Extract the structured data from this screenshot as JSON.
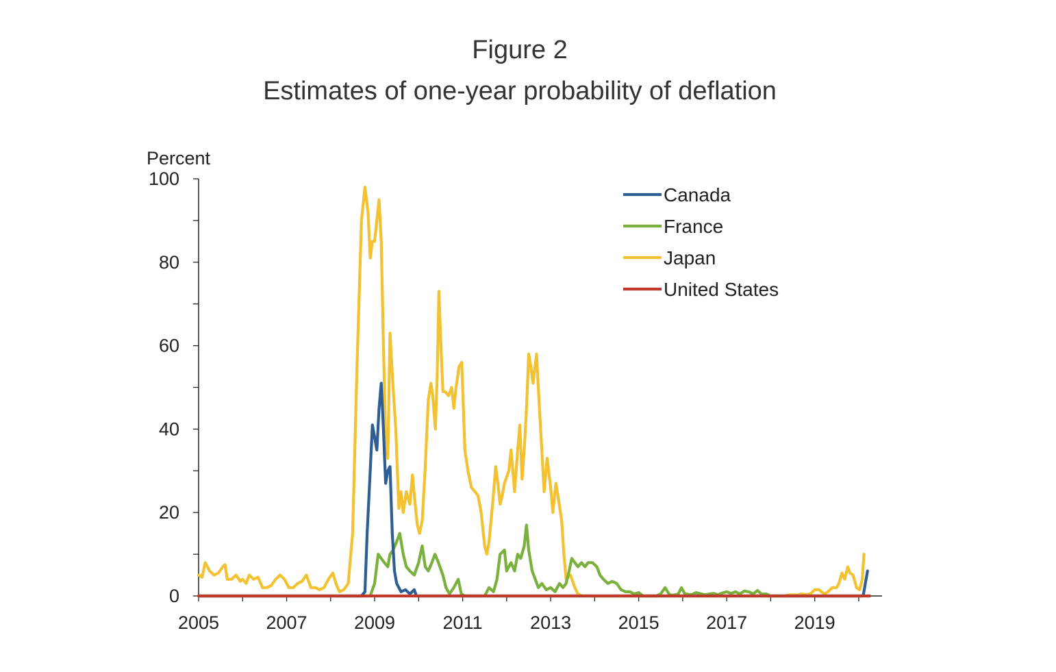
{
  "figure": {
    "label": "Figure 2",
    "subtitle": "Estimates of one-year probability of deflation"
  },
  "chart_data": {
    "type": "line",
    "title": "Estimates of one-year probability of deflation",
    "ylabel": "Percent",
    "xlabel": "",
    "ylim": [
      0,
      100
    ],
    "xlim": [
      2005,
      2020.25
    ],
    "yticks": [
      0,
      20,
      40,
      60,
      80,
      100
    ],
    "xticks": [
      2005,
      2007,
      2009,
      2011,
      2013,
      2015,
      2017,
      2019
    ],
    "grid": false,
    "legend_position": "top-right",
    "series": [
      {
        "name": "Canada",
        "color": "#2e5e93",
        "points": [
          [
            2005,
            0
          ],
          [
            2008.7,
            0
          ],
          [
            2008.78,
            1
          ],
          [
            2008.83,
            15
          ],
          [
            2008.9,
            30
          ],
          [
            2008.95,
            41
          ],
          [
            2009.0,
            38
          ],
          [
            2009.05,
            35
          ],
          [
            2009.1,
            45
          ],
          [
            2009.15,
            51
          ],
          [
            2009.2,
            40
          ],
          [
            2009.25,
            27
          ],
          [
            2009.3,
            30
          ],
          [
            2009.35,
            31
          ],
          [
            2009.4,
            15
          ],
          [
            2009.45,
            6
          ],
          [
            2009.5,
            3
          ],
          [
            2009.6,
            1
          ],
          [
            2009.7,
            1.5
          ],
          [
            2009.8,
            0.5
          ],
          [
            2009.9,
            1.5
          ],
          [
            2009.95,
            0
          ],
          [
            2020.1,
            0
          ],
          [
            2020.15,
            3
          ],
          [
            2020.2,
            6
          ]
        ]
      },
      {
        "name": "France",
        "color": "#7ab03c",
        "points": [
          [
            2005,
            0
          ],
          [
            2008.9,
            0
          ],
          [
            2009.0,
            3
          ],
          [
            2009.08,
            10
          ],
          [
            2009.15,
            9
          ],
          [
            2009.22,
            8
          ],
          [
            2009.3,
            7
          ],
          [
            2009.35,
            10
          ],
          [
            2009.42,
            11
          ],
          [
            2009.5,
            13
          ],
          [
            2009.57,
            15
          ],
          [
            2009.65,
            10
          ],
          [
            2009.72,
            7
          ],
          [
            2009.8,
            6
          ],
          [
            2009.9,
            5
          ],
          [
            2010.0,
            8
          ],
          [
            2010.08,
            12
          ],
          [
            2010.15,
            7
          ],
          [
            2010.22,
            6
          ],
          [
            2010.3,
            8
          ],
          [
            2010.37,
            10
          ],
          [
            2010.45,
            8
          ],
          [
            2010.55,
            5
          ],
          [
            2010.62,
            2
          ],
          [
            2010.7,
            0.5
          ],
          [
            2010.8,
            2
          ],
          [
            2010.9,
            4
          ],
          [
            2010.97,
            0.5
          ],
          [
            2011.05,
            0
          ],
          [
            2011.5,
            0
          ],
          [
            2011.6,
            2
          ],
          [
            2011.7,
            1
          ],
          [
            2011.78,
            4
          ],
          [
            2011.85,
            10
          ],
          [
            2011.95,
            11
          ],
          [
            2012.0,
            6
          ],
          [
            2012.1,
            8
          ],
          [
            2012.18,
            6
          ],
          [
            2012.25,
            10
          ],
          [
            2012.32,
            9
          ],
          [
            2012.4,
            12
          ],
          [
            2012.45,
            17
          ],
          [
            2012.5,
            11
          ],
          [
            2012.58,
            6
          ],
          [
            2012.65,
            4
          ],
          [
            2012.72,
            2
          ],
          [
            2012.8,
            3
          ],
          [
            2012.9,
            1.5
          ],
          [
            2013.0,
            2
          ],
          [
            2013.1,
            1
          ],
          [
            2013.2,
            3
          ],
          [
            2013.28,
            2
          ],
          [
            2013.35,
            3
          ],
          [
            2013.42,
            6
          ],
          [
            2013.48,
            9
          ],
          [
            2013.55,
            8
          ],
          [
            2013.62,
            7
          ],
          [
            2013.7,
            8
          ],
          [
            2013.78,
            7
          ],
          [
            2013.85,
            8
          ],
          [
            2013.95,
            8
          ],
          [
            2014.05,
            7
          ],
          [
            2014.12,
            5
          ],
          [
            2014.2,
            4
          ],
          [
            2014.3,
            3
          ],
          [
            2014.4,
            3.5
          ],
          [
            2014.5,
            3
          ],
          [
            2014.6,
            1.5
          ],
          [
            2014.7,
            1
          ],
          [
            2014.8,
            1
          ],
          [
            2014.9,
            0.5
          ],
          [
            2015.0,
            0.8
          ],
          [
            2015.1,
            0
          ],
          [
            2015.4,
            0
          ],
          [
            2015.5,
            0.5
          ],
          [
            2015.6,
            2
          ],
          [
            2015.7,
            0.3
          ],
          [
            2015.8,
            0.2
          ],
          [
            2015.9,
            0.5
          ],
          [
            2015.97,
            2
          ],
          [
            2016.05,
            0.5
          ],
          [
            2016.2,
            0.3
          ],
          [
            2016.3,
            0.8
          ],
          [
            2016.5,
            0.3
          ],
          [
            2016.7,
            0.6
          ],
          [
            2016.8,
            0.3
          ],
          [
            2016.9,
            0.7
          ],
          [
            2017.0,
            1
          ],
          [
            2017.1,
            0.6
          ],
          [
            2017.2,
            1
          ],
          [
            2017.3,
            0.5
          ],
          [
            2017.4,
            1.2
          ],
          [
            2017.5,
            1
          ],
          [
            2017.6,
            0.5
          ],
          [
            2017.7,
            1.3
          ],
          [
            2017.8,
            0.4
          ],
          [
            2017.9,
            0.5
          ],
          [
            2018.0,
            0
          ],
          [
            2020.25,
            0
          ]
        ]
      },
      {
        "name": "Japan",
        "color": "#f2c232",
        "points": [
          [
            2005.0,
            5
          ],
          [
            2005.08,
            4.5
          ],
          [
            2005.15,
            8
          ],
          [
            2005.25,
            6
          ],
          [
            2005.35,
            5
          ],
          [
            2005.45,
            5.5
          ],
          [
            2005.55,
            7
          ],
          [
            2005.6,
            7.5
          ],
          [
            2005.65,
            4
          ],
          [
            2005.75,
            4
          ],
          [
            2005.85,
            5
          ],
          [
            2005.95,
            3.5
          ],
          [
            2006.0,
            4
          ],
          [
            2006.08,
            3
          ],
          [
            2006.15,
            5
          ],
          [
            2006.25,
            4
          ],
          [
            2006.35,
            4.5
          ],
          [
            2006.45,
            2
          ],
          [
            2006.55,
            2
          ],
          [
            2006.65,
            2.5
          ],
          [
            2006.75,
            4
          ],
          [
            2006.85,
            5
          ],
          [
            2006.95,
            4
          ],
          [
            2007.05,
            2
          ],
          [
            2007.15,
            2
          ],
          [
            2007.25,
            3
          ],
          [
            2007.35,
            3.5
          ],
          [
            2007.45,
            5
          ],
          [
            2007.55,
            2
          ],
          [
            2007.65,
            2
          ],
          [
            2007.75,
            1.5
          ],
          [
            2007.85,
            2
          ],
          [
            2007.95,
            4
          ],
          [
            2008.05,
            5.5
          ],
          [
            2008.12,
            3
          ],
          [
            2008.2,
            1
          ],
          [
            2008.3,
            1.5
          ],
          [
            2008.4,
            3
          ],
          [
            2008.5,
            15
          ],
          [
            2008.6,
            55
          ],
          [
            2008.7,
            90
          ],
          [
            2008.78,
            98
          ],
          [
            2008.85,
            92
          ],
          [
            2008.9,
            81
          ],
          [
            2008.95,
            85
          ],
          [
            2009.0,
            85
          ],
          [
            2009.05,
            90
          ],
          [
            2009.1,
            95
          ],
          [
            2009.15,
            85
          ],
          [
            2009.2,
            60
          ],
          [
            2009.25,
            38
          ],
          [
            2009.3,
            33
          ],
          [
            2009.35,
            63
          ],
          [
            2009.42,
            50
          ],
          [
            2009.48,
            40
          ],
          [
            2009.55,
            21
          ],
          [
            2009.6,
            25
          ],
          [
            2009.65,
            20
          ],
          [
            2009.72,
            25
          ],
          [
            2009.8,
            22
          ],
          [
            2009.86,
            29
          ],
          [
            2009.92,
            22
          ],
          [
            2009.97,
            17
          ],
          [
            2010.02,
            15
          ],
          [
            2010.08,
            18
          ],
          [
            2010.15,
            31
          ],
          [
            2010.22,
            47
          ],
          [
            2010.28,
            51
          ],
          [
            2010.32,
            48
          ],
          [
            2010.38,
            40
          ],
          [
            2010.42,
            52
          ],
          [
            2010.46,
            73
          ],
          [
            2010.5,
            62
          ],
          [
            2010.55,
            49
          ],
          [
            2010.6,
            49
          ],
          [
            2010.68,
            48
          ],
          [
            2010.75,
            50
          ],
          [
            2010.8,
            45
          ],
          [
            2010.85,
            50
          ],
          [
            2010.92,
            55
          ],
          [
            2010.98,
            56
          ],
          [
            2011.05,
            35
          ],
          [
            2011.12,
            30
          ],
          [
            2011.2,
            26
          ],
          [
            2011.28,
            25
          ],
          [
            2011.35,
            24
          ],
          [
            2011.42,
            20
          ],
          [
            2011.5,
            12
          ],
          [
            2011.55,
            10
          ],
          [
            2011.6,
            13
          ],
          [
            2011.68,
            22
          ],
          [
            2011.75,
            31
          ],
          [
            2011.8,
            27
          ],
          [
            2011.85,
            22
          ],
          [
            2011.9,
            24
          ],
          [
            2011.95,
            27
          ],
          [
            2012.05,
            30
          ],
          [
            2012.1,
            35
          ],
          [
            2012.18,
            25
          ],
          [
            2012.25,
            35
          ],
          [
            2012.3,
            41
          ],
          [
            2012.35,
            28
          ],
          [
            2012.4,
            35
          ],
          [
            2012.45,
            45
          ],
          [
            2012.5,
            58
          ],
          [
            2012.55,
            55
          ],
          [
            2012.6,
            51
          ],
          [
            2012.68,
            58
          ],
          [
            2012.75,
            44
          ],
          [
            2012.8,
            35
          ],
          [
            2012.85,
            25
          ],
          [
            2012.92,
            33
          ],
          [
            2013.0,
            26
          ],
          [
            2013.05,
            20
          ],
          [
            2013.12,
            27
          ],
          [
            2013.18,
            23
          ],
          [
            2013.25,
            18
          ],
          [
            2013.3,
            10
          ],
          [
            2013.35,
            4
          ],
          [
            2013.45,
            5
          ],
          [
            2013.55,
            2
          ],
          [
            2013.62,
            0.5
          ],
          [
            2013.7,
            0
          ],
          [
            2018.3,
            0
          ],
          [
            2018.4,
            0.2
          ],
          [
            2018.5,
            0.3
          ],
          [
            2018.6,
            0.2
          ],
          [
            2018.7,
            0.5
          ],
          [
            2018.8,
            0.3
          ],
          [
            2018.9,
            0.5
          ],
          [
            2019.0,
            1.5
          ],
          [
            2019.1,
            1.5
          ],
          [
            2019.15,
            1
          ],
          [
            2019.22,
            0.5
          ],
          [
            2019.3,
            1
          ],
          [
            2019.4,
            2
          ],
          [
            2019.5,
            2
          ],
          [
            2019.55,
            3
          ],
          [
            2019.62,
            5.5
          ],
          [
            2019.68,
            4
          ],
          [
            2019.75,
            7
          ],
          [
            2019.8,
            5.5
          ],
          [
            2019.87,
            5
          ],
          [
            2019.95,
            2
          ],
          [
            2020.02,
            1.5
          ],
          [
            2020.08,
            4
          ],
          [
            2020.12,
            10
          ]
        ]
      },
      {
        "name": "United States",
        "color": "#c0392b",
        "points": [
          [
            2005,
            0
          ],
          [
            2020.25,
            0
          ]
        ]
      }
    ]
  }
}
